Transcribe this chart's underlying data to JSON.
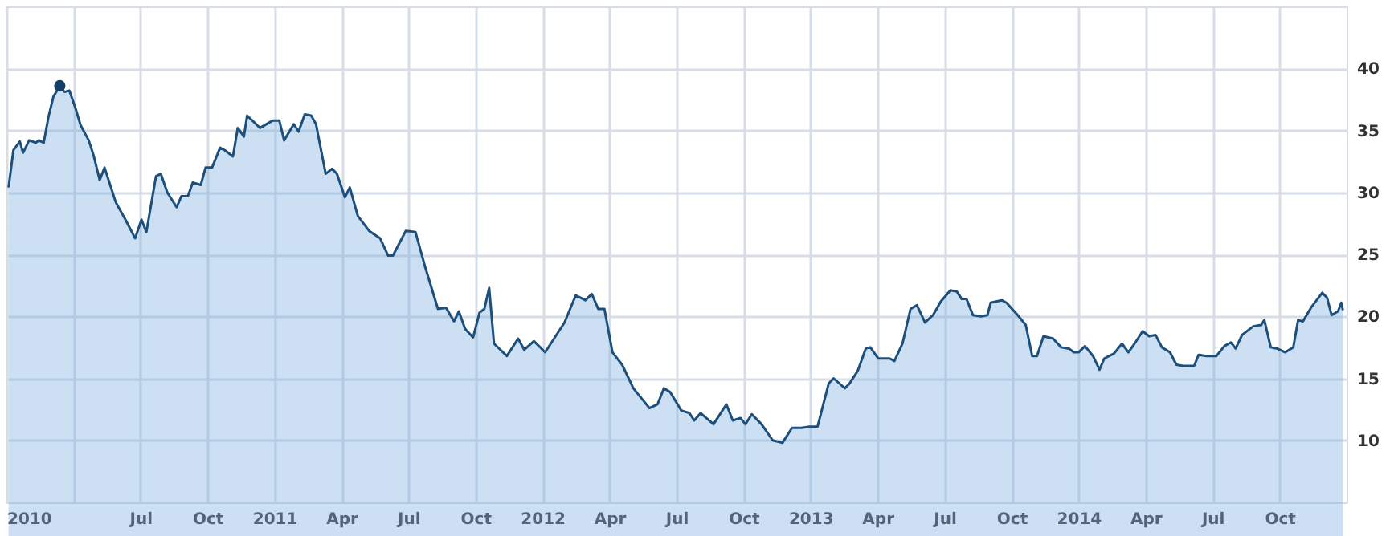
{
  "chart_data": {
    "type": "area",
    "xlim": [
      2010,
      2015
    ],
    "ylim": [
      5,
      45
    ],
    "xticks": [
      {
        "value": 2010,
        "label": "2010"
      },
      {
        "value": 2010.25,
        "label": null
      },
      {
        "value": 2010.5,
        "label": "Jul"
      },
      {
        "value": 2010.75,
        "label": "Oct"
      },
      {
        "value": 2011,
        "label": "2011"
      },
      {
        "value": 2011.25,
        "label": "Apr"
      },
      {
        "value": 2011.5,
        "label": "Jul"
      },
      {
        "value": 2011.75,
        "label": "Oct"
      },
      {
        "value": 2012,
        "label": "2012"
      },
      {
        "value": 2012.25,
        "label": "Apr"
      },
      {
        "value": 2012.5,
        "label": "Jul"
      },
      {
        "value": 2012.75,
        "label": "Oct"
      },
      {
        "value": 2013,
        "label": "2013"
      },
      {
        "value": 2013.25,
        "label": "Apr"
      },
      {
        "value": 2013.5,
        "label": "Jul"
      },
      {
        "value": 2013.75,
        "label": "Oct"
      },
      {
        "value": 2014,
        "label": "2014"
      },
      {
        "value": 2014.25,
        "label": "Apr"
      },
      {
        "value": 2014.5,
        "label": "Jul"
      },
      {
        "value": 2014.75,
        "label": "Oct"
      }
    ],
    "yticks": [
      10,
      15,
      20,
      25,
      30,
      35,
      40
    ],
    "grid": true,
    "series": [
      {
        "color": "#1d4f7c",
        "x": [
          2010.008,
          2010.026,
          2010.05,
          2010.062,
          2010.085,
          2010.109,
          2010.121,
          2010.139,
          2010.157,
          2010.175,
          2010.199,
          2010.217,
          2010.235,
          2010.259,
          2010.277,
          2010.307,
          2010.325,
          2010.348,
          2010.366,
          2010.408,
          2010.444,
          2010.48,
          2010.504,
          2010.522,
          2010.558,
          2010.576,
          2010.6,
          2010.635,
          2010.653,
          2010.677,
          2010.695,
          2010.725,
          2010.743,
          2010.767,
          2010.797,
          2010.815,
          2010.845,
          2010.863,
          2010.886,
          2010.898,
          2010.946,
          2010.994,
          2011.018,
          2011.036,
          2011.072,
          2011.09,
          2011.113,
          2011.137,
          2011.155,
          2011.191,
          2011.215,
          2011.233,
          2011.263,
          2011.281,
          2011.311,
          2011.353,
          2011.394,
          2011.424,
          2011.442,
          2011.49,
          2011.526,
          2011.562,
          2011.61,
          2011.64,
          2011.67,
          2011.688,
          2011.711,
          2011.741,
          2011.765,
          2011.783,
          2011.801,
          2011.819,
          2011.867,
          2011.909,
          2011.932,
          2011.968,
          2012.01,
          2012.082,
          2012.124,
          2012.16,
          2012.184,
          2012.208,
          2012.231,
          2012.261,
          2012.297,
          2012.339,
          2012.399,
          2012.429,
          2012.453,
          2012.476,
          2012.518,
          2012.548,
          2012.566,
          2012.59,
          2012.638,
          2012.686,
          2012.71,
          2012.739,
          2012.757,
          2012.781,
          2012.817,
          2012.859,
          2012.895,
          2012.931,
          2012.966,
          2012.996,
          2013.026,
          2013.068,
          2013.086,
          2013.128,
          2013.146,
          2013.176,
          2013.206,
          2013.223,
          2013.253,
          2013.295,
          2013.313,
          2013.343,
          2013.373,
          2013.397,
          2013.427,
          2013.457,
          2013.486,
          2013.522,
          2013.546,
          2013.564,
          2013.582,
          2013.606,
          2013.636,
          2013.66,
          2013.672,
          2013.713,
          2013.731,
          2013.773,
          2013.803,
          2013.827,
          2013.845,
          2013.869,
          2013.905,
          2013.935,
          2013.964,
          2013.982,
          2014.0,
          2014.024,
          2014.054,
          2014.078,
          2014.096,
          2014.132,
          2014.162,
          2014.186,
          2014.209,
          2014.239,
          2014.263,
          2014.287,
          2014.311,
          2014.341,
          2014.365,
          2014.389,
          2014.431,
          2014.448,
          2014.478,
          2014.514,
          2014.544,
          2014.568,
          2014.586,
          2014.61,
          2014.652,
          2014.681,
          2014.693,
          2014.717,
          2014.741,
          2014.771,
          2014.801,
          2014.819,
          2014.837,
          2014.867,
          2014.909,
          2014.927,
          2014.944,
          2014.968,
          2014.98,
          2014.986
        ],
        "values": [
          30.4,
          33.4,
          34.1,
          33.2,
          34.2,
          34.0,
          34.2,
          34.0,
          36.1,
          37.7,
          38.6,
          38.1,
          38.2,
          36.7,
          35.4,
          34.2,
          33.0,
          31.0,
          32.0,
          29.2,
          27.8,
          26.3,
          27.8,
          26.8,
          31.3,
          31.5,
          30.0,
          28.8,
          29.7,
          29.7,
          30.8,
          30.6,
          32.0,
          32.0,
          33.6,
          33.4,
          32.9,
          35.2,
          34.5,
          36.2,
          35.2,
          35.8,
          35.8,
          34.2,
          35.5,
          34.9,
          36.3,
          36.2,
          35.5,
          31.5,
          31.9,
          31.5,
          29.6,
          30.4,
          28.1,
          26.9,
          26.3,
          24.9,
          24.9,
          26.9,
          26.8,
          24.0,
          20.6,
          20.7,
          19.6,
          20.4,
          19.0,
          18.3,
          20.3,
          20.6,
          22.3,
          17.8,
          16.8,
          18.2,
          17.3,
          18.0,
          17.1,
          19.5,
          21.7,
          21.3,
          21.8,
          20.6,
          20.6,
          17.1,
          16.1,
          14.2,
          12.6,
          12.9,
          14.2,
          13.9,
          12.4,
          12.2,
          11.6,
          12.2,
          11.3,
          12.9,
          11.6,
          11.8,
          11.3,
          12.1,
          11.3,
          10.0,
          9.8,
          11.0,
          11.0,
          11.1,
          11.1,
          14.6,
          15.0,
          14.2,
          14.6,
          15.6,
          17.4,
          17.5,
          16.6,
          16.6,
          16.4,
          17.8,
          20.6,
          20.9,
          19.5,
          20.1,
          21.2,
          22.1,
          22.0,
          21.4,
          21.4,
          20.1,
          20.0,
          20.1,
          21.1,
          21.3,
          21.1,
          20.1,
          19.3,
          16.8,
          16.8,
          18.4,
          18.2,
          17.5,
          17.4,
          17.1,
          17.1,
          17.6,
          16.8,
          15.7,
          16.6,
          17.0,
          17.8,
          17.1,
          17.8,
          18.8,
          18.4,
          18.5,
          17.5,
          17.1,
          16.1,
          16.0,
          16.0,
          16.9,
          16.8,
          16.8,
          17.6,
          17.9,
          17.4,
          18.5,
          19.2,
          19.3,
          19.7,
          17.5,
          17.4,
          17.1,
          17.5,
          19.7,
          19.6,
          20.7,
          21.9,
          21.5,
          20.1,
          20.4,
          21.1,
          20.5
        ]
      },
      {
        "type": "scatter",
        "color": "#123d66",
        "x": [
          2010.199
        ],
        "values": [
          38.6
        ]
      }
    ]
  }
}
